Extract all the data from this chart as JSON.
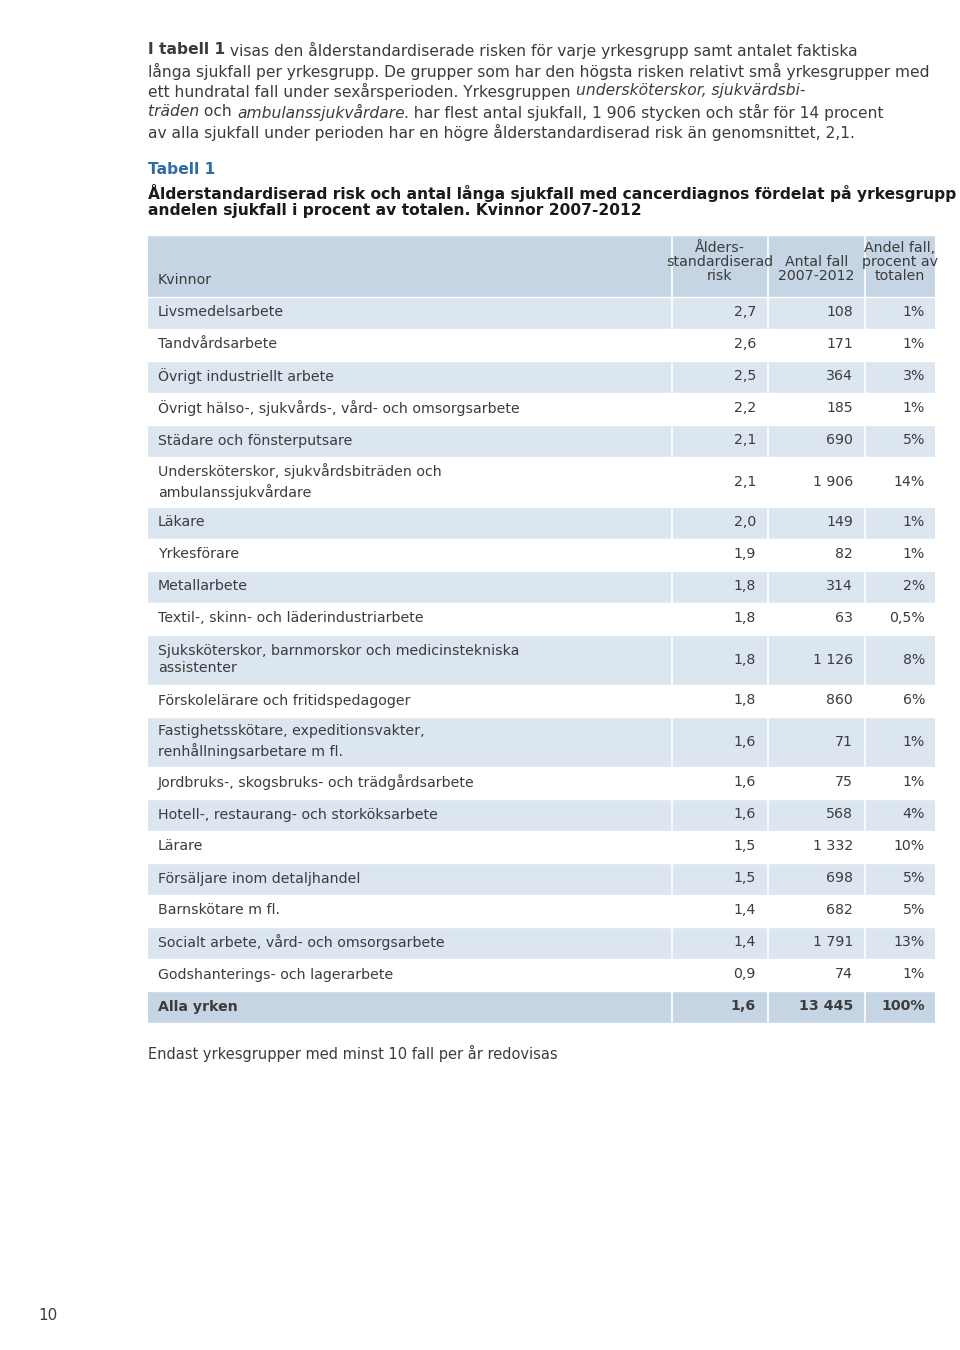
{
  "page_number": "10",
  "table_label": "Tabell 1",
  "table_label_color": "#2e6da4",
  "table_title_line1": "Ålderstandardiserad risk och antal långa sjukfall med cancerdiagnos fördelat på yrkesgrupp samt",
  "table_title_line2": "andelen sjukfall i procent av totalen. Kvinnor 2007-2012",
  "col_header_row": "Kvinnor",
  "col_header_1a": "Ålders-",
  "col_header_1b": "standardiserad",
  "col_header_1c": "risk",
  "col_header_2a": "Antal fall",
  "col_header_2b": "2007-2012",
  "col_header_3a": "Andel fall,",
  "col_header_3b": "procent av",
  "col_header_3c": "totalen",
  "footer_text": "Endast yrkesgrupper med minst 10 fall per år redovisas",
  "header_bg": "#c5d5e4",
  "row_bg_odd": "#dce6f0",
  "row_bg_even": "#ffffff",
  "last_row_bg": "#c5d5e4",
  "text_color": "#3c3c3c",
  "intro_lines": [
    [
      [
        "I ",
        true,
        false
      ],
      [
        "tabell 1",
        true,
        false
      ],
      [
        " visas den ålderstandardiserade risken för varje yrkesgrupp samt antalet faktiska",
        false,
        false
      ]
    ],
    [
      [
        "långa sjukfall per yrkesgrupp. De grupper som har den högsta risken relativt små yrkesgrupper med",
        false,
        false
      ]
    ],
    [
      [
        "ett hundratal fall under sexårsperioden. Yrkesgruppen ",
        false,
        false
      ],
      [
        "undersköterskor, sjukvärdsbi-",
        false,
        true
      ]
    ],
    [
      [
        "träden",
        false,
        true
      ],
      [
        " och ",
        false,
        false
      ],
      [
        "ambulanssjukvårdare",
        false,
        true
      ],
      [
        ". har flest antal sjukfall, 1 906 stycken och står för 14 procent",
        false,
        false
      ]
    ],
    [
      [
        "av alla sjukfall under perioden har en högre ålderstandardiserad risk än genomsnittet, 2,1.",
        false,
        false
      ]
    ]
  ],
  "rows": [
    {
      "name": "Livsmedelsarbete",
      "risk": "2,7",
      "antal": "108",
      "andel": "1%",
      "multiline": false,
      "last": false
    },
    {
      "name": "Tandvårdsarbete",
      "risk": "2,6",
      "antal": "171",
      "andel": "1%",
      "multiline": false,
      "last": false
    },
    {
      "name": "Övrigt industriellt arbete",
      "risk": "2,5",
      "antal": "364",
      "andel": "3%",
      "multiline": false,
      "last": false
    },
    {
      "name": "Övrigt hälso-, sjukvårds-, vård- och omsorgsarbete",
      "risk": "2,2",
      "antal": "185",
      "andel": "1%",
      "multiline": false,
      "last": false
    },
    {
      "name": "Städare och fönsterputsare",
      "risk": "2,1",
      "antal": "690",
      "andel": "5%",
      "multiline": false,
      "last": false
    },
    {
      "name": "Undersköterskor, sjukvårdsbiträden och\nambulanssjukvårdare",
      "risk": "2,1",
      "antal": "1 906",
      "andel": "14%",
      "multiline": true,
      "last": false
    },
    {
      "name": "Läkare",
      "risk": "2,0",
      "antal": "149",
      "andel": "1%",
      "multiline": false,
      "last": false
    },
    {
      "name": "Yrkesförare",
      "risk": "1,9",
      "antal": "82",
      "andel": "1%",
      "multiline": false,
      "last": false
    },
    {
      "name": "Metallarbete",
      "risk": "1,8",
      "antal": "314",
      "andel": "2%",
      "multiline": false,
      "last": false
    },
    {
      "name": "Textil-, skinn- och läderindustriarbete",
      "risk": "1,8",
      "antal": "63",
      "andel": "0,5%",
      "multiline": false,
      "last": false
    },
    {
      "name": "Sjuksköterskor, barnmorskor och medicinstekniska\nassistenter",
      "risk": "1,8",
      "antal": "1 126",
      "andel": "8%",
      "multiline": true,
      "last": false
    },
    {
      "name": "Förskolelärare och fritidspedagoger",
      "risk": "1,8",
      "antal": "860",
      "andel": "6%",
      "multiline": false,
      "last": false
    },
    {
      "name": "Fastighetsskötare, expeditionsvakter,\nrenhållningsarbetare m fl.",
      "risk": "1,6",
      "antal": "71",
      "andel": "1%",
      "multiline": true,
      "last": false
    },
    {
      "name": "Jordbruks-, skogsbruks- och trädgårdsarbete",
      "risk": "1,6",
      "antal": "75",
      "andel": "1%",
      "multiline": false,
      "last": false
    },
    {
      "name": "Hotell-, restaurang- och storköksarbete",
      "risk": "1,6",
      "antal": "568",
      "andel": "4%",
      "multiline": false,
      "last": false
    },
    {
      "name": "Lärare",
      "risk": "1,5",
      "antal": "1 332",
      "andel": "10%",
      "multiline": false,
      "last": false
    },
    {
      "name": "Försäljare inom detaljhandel",
      "risk": "1,5",
      "antal": "698",
      "andel": "5%",
      "multiline": false,
      "last": false
    },
    {
      "name": "Barnskötare m fl.",
      "risk": "1,4",
      "antal": "682",
      "andel": "5%",
      "multiline": false,
      "last": false
    },
    {
      "name": "Socialt arbete, vård- och omsorgsarbete",
      "risk": "1,4",
      "antal": "1 791",
      "andel": "13%",
      "multiline": false,
      "last": false
    },
    {
      "name": "Godshanterings- och lagerarbete",
      "risk": "0,9",
      "antal": "74",
      "andel": "1%",
      "multiline": false,
      "last": false
    },
    {
      "name": "Alla yrken",
      "risk": "1,6",
      "antal": "13 445",
      "andel": "100%",
      "multiline": false,
      "last": true
    }
  ]
}
